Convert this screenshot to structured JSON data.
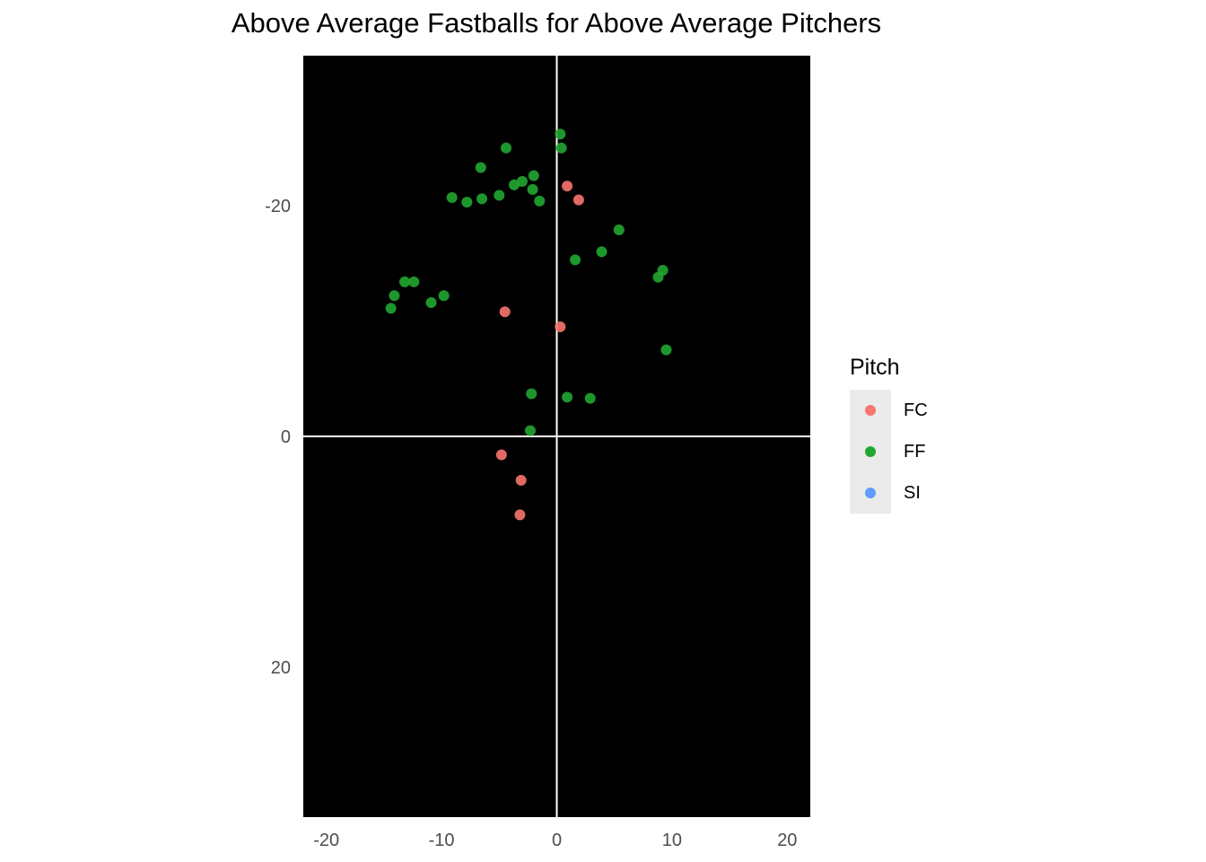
{
  "chart_data": {
    "type": "scatter",
    "title": "Above Average Fastballs for Above Average Pitchers",
    "xlabel": "",
    "ylabel": "",
    "xlim": [
      -22,
      22
    ],
    "ylim": [
      -33,
      33
    ],
    "y_reversed": true,
    "x_ticks": [
      "-20",
      "-10",
      "0",
      "10",
      "20"
    ],
    "y_ticks": [
      "-20",
      "0",
      "20"
    ],
    "x_tick_values": [
      -20,
      -10,
      0,
      10,
      20
    ],
    "y_tick_values": [
      -20,
      0,
      20
    ],
    "panel_background": "#000000",
    "reference_lines": {
      "x": 0,
      "y": 0,
      "color": "#ffffff"
    },
    "grid": false,
    "legend": {
      "title": "Pitch",
      "position": "right"
    },
    "series": [
      {
        "name": "FC",
        "color": "#f8766d",
        "points": [
          [
            0.9,
            -21.7
          ],
          [
            1.9,
            -20.5
          ],
          [
            -4.5,
            -10.8
          ],
          [
            0.3,
            -9.5
          ],
          [
            -4.8,
            1.6
          ],
          [
            -3.1,
            3.8
          ],
          [
            -3.2,
            6.8
          ]
        ]
      },
      {
        "name": "FF",
        "color": "#21a631",
        "points": [
          [
            0.3,
            -26.2
          ],
          [
            0.4,
            -25.0
          ],
          [
            -4.4,
            -25.0
          ],
          [
            -6.6,
            -23.3
          ],
          [
            -2.0,
            -22.6
          ],
          [
            -3.0,
            -22.1
          ],
          [
            -3.7,
            -21.8
          ],
          [
            -2.1,
            -21.4
          ],
          [
            -5.0,
            -20.9
          ],
          [
            -9.1,
            -20.7
          ],
          [
            -6.5,
            -20.6
          ],
          [
            -7.8,
            -20.3
          ],
          [
            -1.5,
            -20.4
          ],
          [
            5.4,
            -17.9
          ],
          [
            3.9,
            -16.0
          ],
          [
            1.6,
            -15.3
          ],
          [
            9.2,
            -14.4
          ],
          [
            8.8,
            -13.8
          ],
          [
            -13.2,
            -13.4
          ],
          [
            -12.4,
            -13.4
          ],
          [
            -14.1,
            -12.2
          ],
          [
            -9.8,
            -12.2
          ],
          [
            -10.9,
            -11.6
          ],
          [
            -14.4,
            -11.1
          ],
          [
            9.5,
            -7.5
          ],
          [
            -2.2,
            -3.7
          ],
          [
            0.9,
            -3.4
          ],
          [
            2.9,
            -3.3
          ],
          [
            -2.3,
            -0.5
          ]
        ]
      },
      {
        "name": "SI",
        "color": "#619cff",
        "points": []
      }
    ]
  }
}
